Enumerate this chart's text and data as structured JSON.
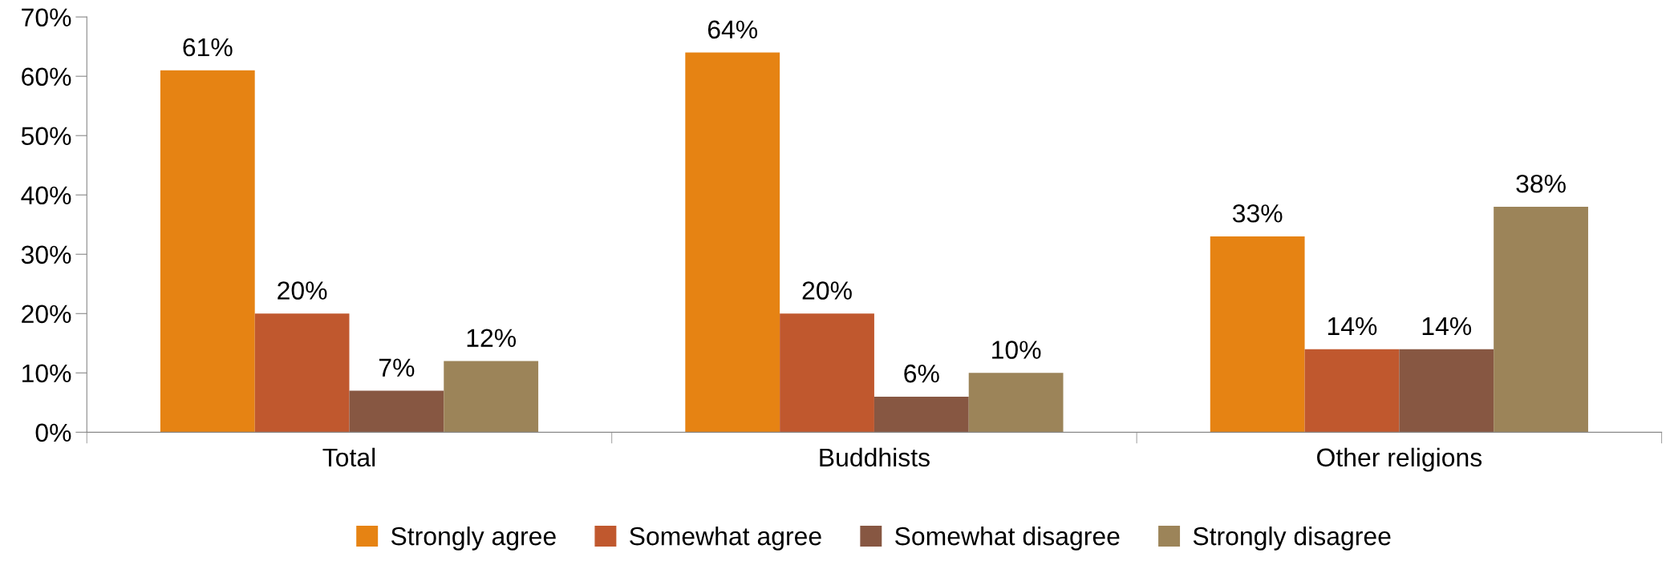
{
  "chart_data": {
    "type": "bar",
    "categories": [
      "Total",
      "Buddhists",
      "Other religions"
    ],
    "series": [
      {
        "name": "Strongly agree",
        "color": "#e68313",
        "values": [
          61,
          64,
          33
        ],
        "value_labels": [
          "61%",
          "64%",
          "33%"
        ]
      },
      {
        "name": "Somewhat agree",
        "color": "#c0582e",
        "values": [
          20,
          20,
          14
        ],
        "value_labels": [
          "20%",
          "20%",
          "14%"
        ]
      },
      {
        "name": "Somewhat disagree",
        "color": "#875742",
        "values": [
          7,
          6,
          14
        ],
        "value_labels": [
          "7%",
          "6%",
          "14%"
        ]
      },
      {
        "name": "Strongly disagree",
        "color": "#9c8459",
        "values": [
          12,
          10,
          38
        ],
        "value_labels": [
          "12%",
          "10%",
          "38%"
        ]
      }
    ],
    "ylim": [
      0,
      70
    ],
    "yticks": [
      {
        "value": 0,
        "label": "0%"
      },
      {
        "value": 10,
        "label": "10%"
      },
      {
        "value": 20,
        "label": "20%"
      },
      {
        "value": 30,
        "label": "30%"
      },
      {
        "value": 40,
        "label": "40%"
      },
      {
        "value": 50,
        "label": "50%"
      },
      {
        "value": 60,
        "label": "60%"
      },
      {
        "value": 70,
        "label": "70%"
      }
    ],
    "grid": false,
    "legend": "bottom"
  }
}
